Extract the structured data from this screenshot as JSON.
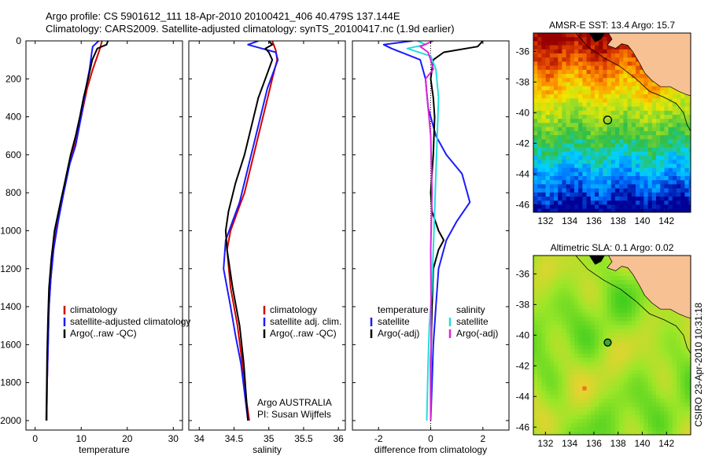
{
  "header": {
    "line1": "Argo profile: CS 5901612_111 18-Apr-2010 20100421_406 40.479S 137.144E",
    "line2": "Climatology: CARS2009. Satellite-adjusted climatology: synTS_20100417.nc (1.9d earlier)"
  },
  "colors": {
    "climatology": "#d40000",
    "satellite": "#1a1aff",
    "argo": "#000000",
    "satellite_salinity": "#22dddd",
    "argo_salinity": "#dd22dd",
    "land": "#f7c194"
  },
  "chart_data": [
    {
      "type": "line",
      "panel": "temperature",
      "xlabel": "temperature",
      "ylabel": "",
      "xlim": [
        -2,
        32
      ],
      "ylim": [
        2050,
        0
      ],
      "xticks": [
        0,
        10,
        20,
        30
      ],
      "yticks": [
        0,
        200,
        400,
        600,
        800,
        1000,
        1200,
        1400,
        1600,
        1800,
        2000
      ],
      "legend": [
        "climatology",
        "satellite-adjusted climatology",
        "Argo(..raw -QC)"
      ],
      "series": [
        {
          "name": "climatology",
          "color": "climatology",
          "x": [
            14.5,
            14.2,
            13.8,
            12.5,
            11.3,
            10.0,
            8.5,
            7.3,
            6.0,
            4.8,
            4.0,
            3.4,
            3.0,
            2.8,
            2.6,
            2.5
          ],
          "y": [
            0,
            30,
            60,
            150,
            250,
            400,
            550,
            650,
            800,
            950,
            1100,
            1250,
            1400,
            1600,
            1800,
            2000
          ]
        },
        {
          "name": "satellite-adjusted climatology",
          "color": "satellite",
          "x": [
            13.8,
            12.5,
            12.3,
            11.8,
            11.0,
            10.0,
            8.8,
            7.5,
            6.2,
            5.0,
            4.0,
            3.4,
            3.0,
            2.8,
            2.6,
            2.5
          ],
          "y": [
            0,
            30,
            60,
            150,
            250,
            400,
            550,
            650,
            800,
            950,
            1100,
            1250,
            1400,
            1600,
            1800,
            2000
          ]
        },
        {
          "name": "Argo(..raw -QC)",
          "color": "argo",
          "x": [
            15.8,
            15.5,
            13.5,
            12.4,
            11.5,
            10.5,
            9.7,
            8.8,
            7.7,
            6.4,
            5.5,
            4.2,
            3.5,
            3.0,
            2.8,
            2.6,
            2.5,
            2.4
          ],
          "y": [
            0,
            20,
            40,
            100,
            200,
            300,
            400,
            500,
            600,
            750,
            850,
            1000,
            1150,
            1300,
            1450,
            1650,
            1850,
            2000
          ]
        }
      ]
    },
    {
      "type": "line",
      "panel": "salinity",
      "xlabel": "salinity",
      "ylabel": "",
      "xlim": [
        33.85,
        36.1
      ],
      "ylim": [
        2050,
        0
      ],
      "xticks": [
        34,
        34.5,
        35,
        35.5,
        36
      ],
      "yticks": [
        0,
        200,
        400,
        600,
        800,
        1000,
        1200,
        1400,
        1600,
        1800,
        2000
      ],
      "legend": [
        "climatology",
        "satellite adj. clim.",
        "Argo(..raw -QC)"
      ],
      "annotation": [
        "Argo AUSTRALIA",
        "PI: Susan Wijffels"
      ],
      "series": [
        {
          "name": "climatology",
          "color": "climatology",
          "x": [
            35.05,
            35.1,
            35.12,
            35.05,
            34.95,
            34.85,
            34.75,
            34.65,
            34.55,
            34.45,
            34.4,
            34.45,
            34.55,
            34.62,
            34.68,
            34.72
          ],
          "y": [
            0,
            50,
            100,
            200,
            350,
            500,
            650,
            800,
            900,
            1000,
            1100,
            1300,
            1500,
            1700,
            1900,
            2000
          ]
        },
        {
          "name": "satellite adj. clim.",
          "color": "satellite",
          "x": [
            34.85,
            34.7,
            34.9,
            35.1,
            35.13,
            35.08,
            34.98,
            34.88,
            34.78,
            34.68,
            34.58,
            34.48,
            34.38,
            34.35,
            34.45,
            34.52,
            34.6,
            34.65,
            34.7
          ],
          "y": [
            0,
            20,
            40,
            60,
            100,
            150,
            250,
            400,
            550,
            700,
            850,
            950,
            1050,
            1200,
            1400,
            1550,
            1700,
            1850,
            2000
          ]
        },
        {
          "name": "Argo(..raw -QC)",
          "color": "argo",
          "x": [
            35.0,
            35.05,
            34.95,
            35.0,
            35.05,
            34.95,
            34.85,
            34.75,
            34.65,
            34.52,
            34.42,
            34.38,
            34.4,
            34.48,
            34.58,
            34.64,
            34.68,
            34.7
          ],
          "y": [
            0,
            20,
            40,
            60,
            100,
            200,
            300,
            450,
            600,
            750,
            900,
            1000,
            1100,
            1300,
            1500,
            1700,
            1900,
            2000
          ]
        }
      ]
    },
    {
      "type": "line",
      "panel": "difference",
      "xlabel": "difference from climatology",
      "ylabel": "",
      "xlim": [
        -3,
        3
      ],
      "ylim": [
        2050,
        0
      ],
      "xticks": [
        -2,
        0,
        2
      ],
      "yticks": [
        0,
        200,
        400,
        600,
        800,
        1000,
        1200,
        1400,
        1600,
        1800,
        2000
      ],
      "legend": [
        "temperature",
        "satellite",
        "Argo(-adj)",
        "salinity",
        "satellite",
        "Argo(-adj)"
      ],
      "series": [
        {
          "name": "satellite",
          "group": "temperature",
          "color": "satellite",
          "x": [
            -0.7,
            -1.8,
            -1.5,
            -0.4,
            -0.2,
            -0.1,
            0.2,
            0.6,
            1.2,
            1.5,
            1.0,
            0.6,
            0.3,
            0.2,
            0.1,
            0.05,
            0.0
          ],
          "y": [
            0,
            20,
            40,
            100,
            200,
            350,
            500,
            600,
            700,
            850,
            950,
            1050,
            1200,
            1400,
            1600,
            1800,
            2000
          ]
        },
        {
          "name": "Argo(-adj)",
          "group": "temperature",
          "color": "argo",
          "x": [
            2.0,
            1.8,
            0.5,
            0.1,
            0.0,
            0.1,
            0.15,
            0.1,
            0.0,
            0.05,
            0.3,
            0.5,
            0.3,
            0.1,
            0.05,
            0.0,
            0.0
          ],
          "y": [
            0,
            30,
            60,
            100,
            200,
            300,
            400,
            600,
            800,
            900,
            1000,
            1050,
            1100,
            1200,
            1400,
            1700,
            2000
          ]
        },
        {
          "name": "satellite",
          "group": "salinity",
          "color": "satellite_salinity",
          "x": [
            -0.5,
            -0.2,
            -0.9,
            0.0,
            0.2,
            0.3,
            0.25,
            0.2,
            0.15,
            0.1,
            0.05,
            -0.05,
            -0.1,
            -0.15
          ],
          "y": [
            0,
            20,
            40,
            80,
            150,
            300,
            500,
            700,
            900,
            1100,
            1300,
            1500,
            1700,
            2000
          ]
        },
        {
          "name": "Argo(-adj)",
          "group": "salinity",
          "color": "argo_salinity",
          "x": [
            0.1,
            -0.4,
            -0.1,
            0.0,
            0.1,
            -0.2,
            -0.1,
            0.0,
            0.05,
            0.0,
            0.02,
            0.0
          ],
          "y": [
            0,
            30,
            60,
            100,
            150,
            200,
            350,
            500,
            800,
            1100,
            1500,
            2000
          ]
        }
      ]
    },
    {
      "type": "heatmap",
      "panel": "sst-map",
      "title": "AMSR-E SST: 13.4 Argo: 15.7",
      "xlim": [
        131,
        144
      ],
      "ylim": [
        -46.5,
        -34.8
      ],
      "xticks": [
        132,
        134,
        136,
        138,
        140,
        142
      ],
      "yticks": [
        -36,
        -38,
        -40,
        -42,
        -44,
        -46
      ],
      "argo_position": {
        "lon": 137.14,
        "lat": -40.48
      }
    },
    {
      "type": "heatmap",
      "panel": "sla-map",
      "title": "Altimetric SLA: 0.1 Argo: 0.02",
      "xlim": [
        131,
        144
      ],
      "ylim": [
        -46.5,
        -34.8
      ],
      "xticks": [
        132,
        134,
        136,
        138,
        140,
        142
      ],
      "yticks": [
        -36,
        -38,
        -40,
        -42,
        -44,
        -46
      ],
      "argo_position": {
        "lon": 137.14,
        "lat": -40.48
      }
    }
  ],
  "footer": {
    "credit": "CSIRO 23-Apr-2010 10:31:18"
  }
}
